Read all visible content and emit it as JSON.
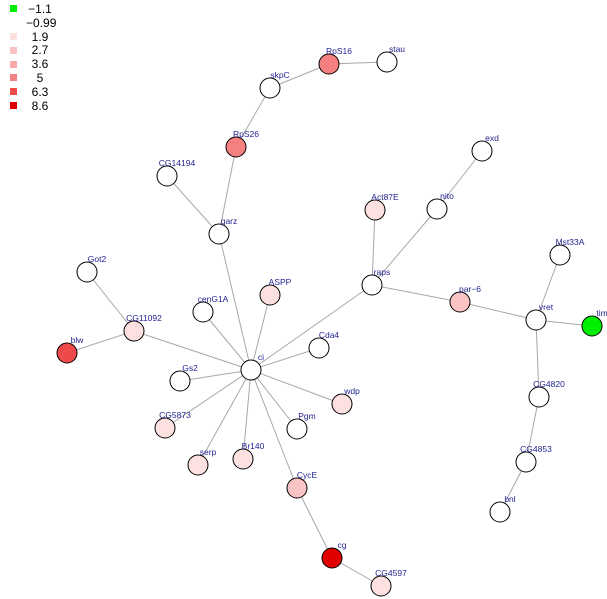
{
  "legend": {
    "items": [
      {
        "label": "−1.1",
        "color": "#00ee00"
      },
      {
        "label": "−0.99",
        "color": "#ffffff"
      },
      {
        "label": "1.9",
        "color": "#fde0e0"
      },
      {
        "label": "2.7",
        "color": "#fbc4c4"
      },
      {
        "label": "3.6",
        "color": "#f8a8a8"
      },
      {
        "label": "5",
        "color": "#f48080"
      },
      {
        "label": "6.3",
        "color": "#ef4a4a"
      },
      {
        "label": "8.6",
        "color": "#e00000"
      }
    ]
  },
  "graph": {
    "nodes": [
      {
        "id": "ci",
        "label": "ci",
        "fill": "#ffffff"
      },
      {
        "id": "garz",
        "label": "garz",
        "fill": "#ffffff"
      },
      {
        "id": "CG14194",
        "label": "CG14194",
        "fill": "#ffffff"
      },
      {
        "id": "RpS26",
        "label": "RpS26",
        "fill": "#f48080"
      },
      {
        "id": "skpC",
        "label": "skpC",
        "fill": "#ffffff"
      },
      {
        "id": "RpS16",
        "label": "RpS16",
        "fill": "#f48080"
      },
      {
        "id": "stau",
        "label": "stau",
        "fill": "#ffffff"
      },
      {
        "id": "Got2",
        "label": "Got2",
        "fill": "#ffffff"
      },
      {
        "id": "CG11092",
        "label": "CG11092",
        "fill": "#fde0e0"
      },
      {
        "id": "blw",
        "label": "blw",
        "fill": "#ef4a4a"
      },
      {
        "id": "cenG1A",
        "label": "cenG1A",
        "fill": "#ffffff"
      },
      {
        "id": "ASPP",
        "label": "ASPP",
        "fill": "#fde0e0"
      },
      {
        "id": "Act87E",
        "label": "Act87E",
        "fill": "#fde0e0"
      },
      {
        "id": "raps",
        "label": "raps",
        "fill": "#ffffff"
      },
      {
        "id": "nito",
        "label": "nito",
        "fill": "#ffffff"
      },
      {
        "id": "exd",
        "label": "exd",
        "fill": "#ffffff"
      },
      {
        "id": "par-6",
        "label": "par−6",
        "fill": "#fbc4c4"
      },
      {
        "id": "vret",
        "label": "vret",
        "fill": "#ffffff"
      },
      {
        "id": "Mst33A",
        "label": "Mst33A",
        "fill": "#ffffff"
      },
      {
        "id": "tim",
        "label": "tim",
        "fill": "#00ee00"
      },
      {
        "id": "CG4820",
        "label": "CG4820",
        "fill": "#ffffff"
      },
      {
        "id": "CG4853",
        "label": "CG4853",
        "fill": "#ffffff"
      },
      {
        "id": "bnl",
        "label": "bnl",
        "fill": "#ffffff"
      },
      {
        "id": "Cda4",
        "label": "Cda4",
        "fill": "#ffffff"
      },
      {
        "id": "wdp",
        "label": "wdp",
        "fill": "#fde0e0"
      },
      {
        "id": "Pgm",
        "label": "Pgm",
        "fill": "#ffffff"
      },
      {
        "id": "Gs2",
        "label": "Gs2",
        "fill": "#ffffff"
      },
      {
        "id": "CG5873",
        "label": "CG5873",
        "fill": "#fde0e0"
      },
      {
        "id": "serp",
        "label": "serp",
        "fill": "#fde0e0"
      },
      {
        "id": "Br140",
        "label": "Br140",
        "fill": "#fde0e0"
      },
      {
        "id": "CycE",
        "label": "CycE",
        "fill": "#fbc4c4"
      },
      {
        "id": "cg",
        "label": "cg",
        "fill": "#e00000"
      },
      {
        "id": "CG4597",
        "label": "CG4597",
        "fill": "#fde0e0"
      }
    ],
    "edges": [
      [
        "ci",
        "garz"
      ],
      [
        "garz",
        "CG14194"
      ],
      [
        "garz",
        "RpS26"
      ],
      [
        "RpS26",
        "skpC"
      ],
      [
        "skpC",
        "RpS16"
      ],
      [
        "RpS16",
        "stau"
      ],
      [
        "ci",
        "CG11092"
      ],
      [
        "CG11092",
        "Got2"
      ],
      [
        "CG11092",
        "blw"
      ],
      [
        "ci",
        "cenG1A"
      ],
      [
        "ci",
        "ASPP"
      ],
      [
        "ci",
        "raps"
      ],
      [
        "raps",
        "Act87E"
      ],
      [
        "raps",
        "nito"
      ],
      [
        "nito",
        "exd"
      ],
      [
        "raps",
        "par-6"
      ],
      [
        "par-6",
        "vret"
      ],
      [
        "vret",
        "Mst33A"
      ],
      [
        "vret",
        "tim"
      ],
      [
        "vret",
        "CG4820"
      ],
      [
        "CG4820",
        "CG4853"
      ],
      [
        "CG4853",
        "bnl"
      ],
      [
        "ci",
        "Cda4"
      ],
      [
        "ci",
        "wdp"
      ],
      [
        "ci",
        "Pgm"
      ],
      [
        "ci",
        "Gs2"
      ],
      [
        "ci",
        "CG5873"
      ],
      [
        "ci",
        "serp"
      ],
      [
        "ci",
        "Br140"
      ],
      [
        "ci",
        "CycE"
      ],
      [
        "CycE",
        "cg"
      ],
      [
        "cg",
        "CG4597"
      ]
    ]
  }
}
